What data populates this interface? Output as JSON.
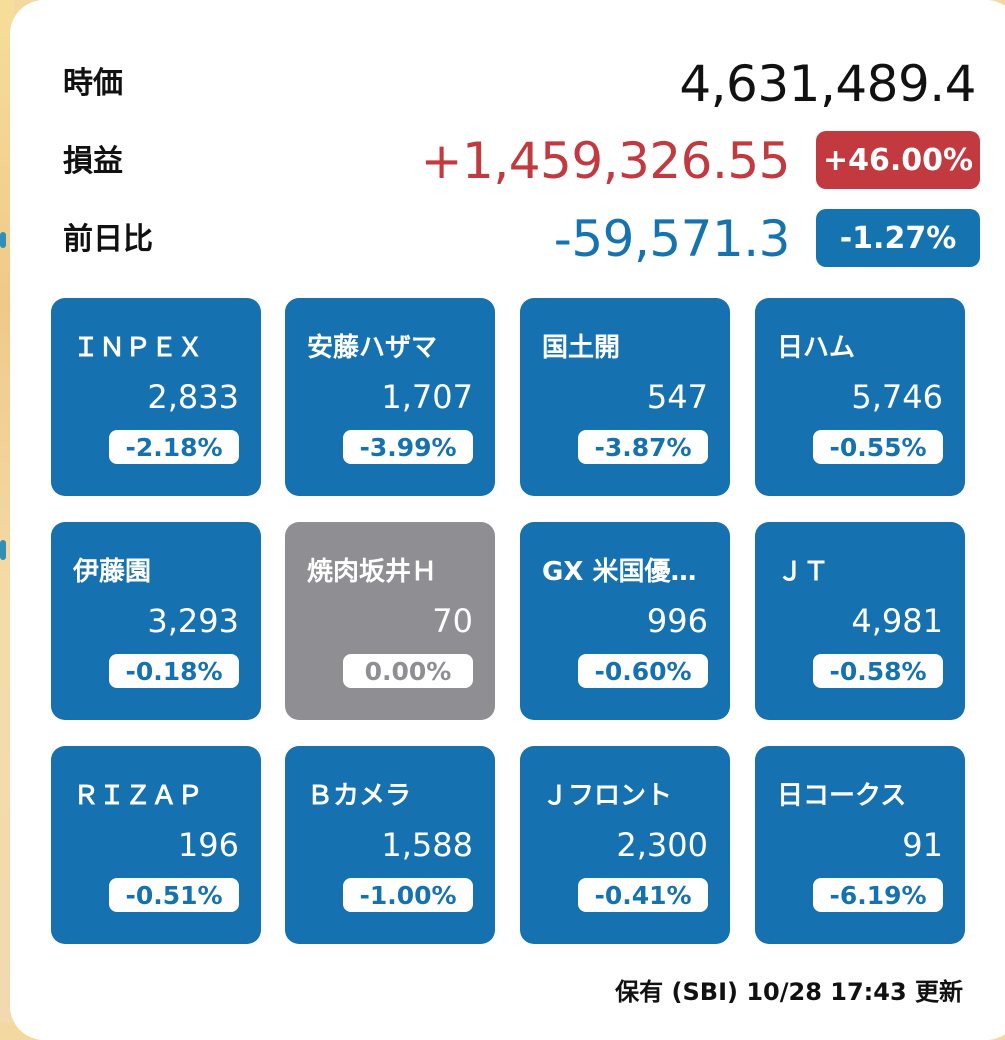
{
  "summary": {
    "market_value_label": "時価",
    "market_value": "4,631,489.4",
    "pnl_label": "損益",
    "pnl_value": "+1,459,326.55",
    "pnl_percent": "+46.00%",
    "day_change_label": "前日比",
    "day_change_value": "-59,571.3",
    "day_change_percent": "-1.27%"
  },
  "colors": {
    "accent_blue": "#1571b0",
    "loss_red": "#c2393f",
    "neutral_gray": "#8e8e93"
  },
  "holdings": [
    {
      "name": "ＩＮＰＥＸ",
      "price": "2,833",
      "change": "-2.18%",
      "state": "down"
    },
    {
      "name": "安藤ハザマ",
      "price": "1,707",
      "change": "-3.99%",
      "state": "down"
    },
    {
      "name": "国土開",
      "price": "547",
      "change": "-3.87%",
      "state": "down"
    },
    {
      "name": "日ハム",
      "price": "5,746",
      "change": "-0.55%",
      "state": "down"
    },
    {
      "name": "伊藤園",
      "price": "3,293",
      "change": "-0.18%",
      "state": "down"
    },
    {
      "name": "焼肉坂井Ｈ",
      "price": "70",
      "change": "0.00%",
      "state": "flat"
    },
    {
      "name": "GX 米国優…",
      "price": "996",
      "change": "-0.60%",
      "state": "down"
    },
    {
      "name": "ＪＴ",
      "price": "4,981",
      "change": "-0.58%",
      "state": "down"
    },
    {
      "name": "ＲＩＺＡＰ",
      "price": "196",
      "change": "-0.51%",
      "state": "down"
    },
    {
      "name": "Ｂカメラ",
      "price": "1,588",
      "change": "-1.00%",
      "state": "down"
    },
    {
      "name": "Ｊフロント",
      "price": "2,300",
      "change": "-0.41%",
      "state": "down"
    },
    {
      "name": "日コークス",
      "price": "91",
      "change": "-6.19%",
      "state": "down"
    }
  ],
  "footer": {
    "status": "保有 (SBI) 10/28 17:43 更新"
  }
}
